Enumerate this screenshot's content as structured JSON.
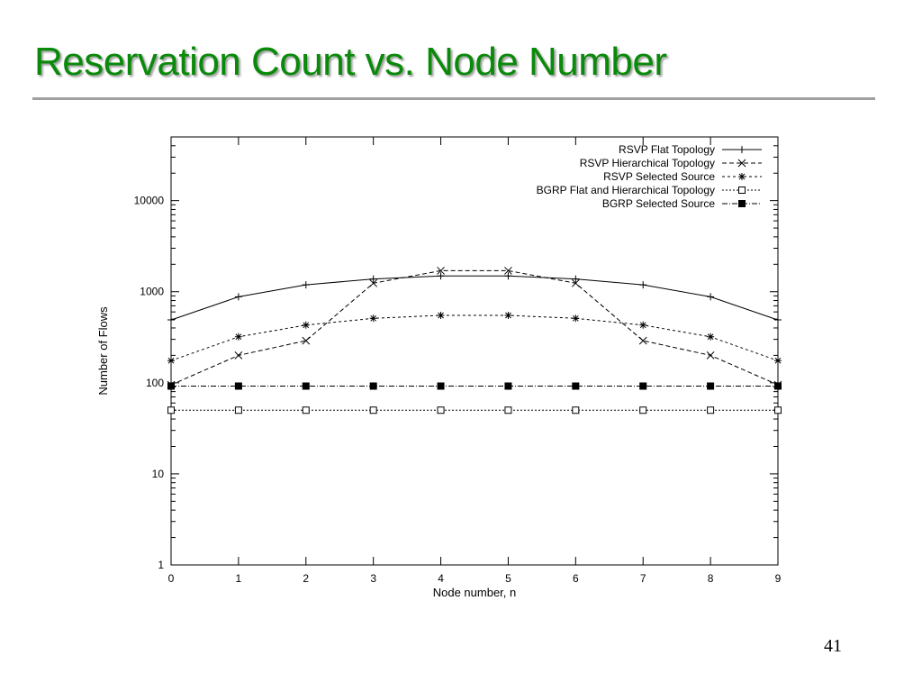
{
  "slide": {
    "title": "Reservation Count vs. Node Number",
    "page_number": "41"
  },
  "chart_data": {
    "type": "line",
    "xlabel": "Node number, n",
    "ylabel": "Number of Flows",
    "xlim": [
      0,
      9
    ],
    "ylim": [
      1,
      50000
    ],
    "yscale": "log",
    "grid": false,
    "legend_position": "top-right",
    "x": [
      0,
      1,
      2,
      3,
      4,
      5,
      6,
      7,
      8,
      9
    ],
    "xticks": [
      "0",
      "1",
      "2",
      "3",
      "4",
      "5",
      "6",
      "7",
      "8",
      "9"
    ],
    "yticks": [
      {
        "value": 1,
        "label": "1"
      },
      {
        "value": 10,
        "label": "10"
      },
      {
        "value": 100,
        "label": "100"
      },
      {
        "value": 1000,
        "label": "1000"
      },
      {
        "value": 10000,
        "label": "10000"
      }
    ],
    "series": [
      {
        "name": "RSVP Flat Topology",
        "marker": "plus",
        "dash": "none",
        "values": [
          490,
          880,
          1190,
          1380,
          1490,
          1490,
          1380,
          1190,
          880,
          490
        ]
      },
      {
        "name": "RSVP Hierarchical Topology",
        "marker": "cross",
        "dash": "5,3",
        "values": [
          95,
          200,
          290,
          1240,
          1700,
          1700,
          1240,
          290,
          200,
          95
        ]
      },
      {
        "name": "RSVP Selected Source",
        "marker": "star",
        "dash": "3,3",
        "values": [
          175,
          320,
          430,
          510,
          550,
          550,
          510,
          430,
          320,
          175
        ]
      },
      {
        "name": "BGRP Flat and Hierarchical Topology",
        "marker": "open-square",
        "dash": "2,2",
        "values": [
          50,
          50,
          50,
          50,
          50,
          50,
          50,
          50,
          50,
          50
        ]
      },
      {
        "name": "BGRP Selected Source",
        "marker": "filled-square",
        "dash": "6,2,1,2",
        "values": [
          92,
          92,
          92,
          92,
          92,
          92,
          92,
          92,
          92,
          92
        ]
      }
    ]
  }
}
